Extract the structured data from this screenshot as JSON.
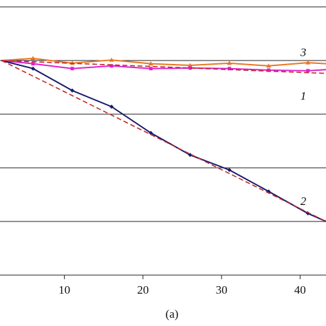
{
  "chart_data": {
    "type": "line",
    "xlabel": "(a)",
    "xlim": [
      1.8,
      43.3
    ],
    "xticks": [
      10,
      20,
      30,
      40
    ],
    "ylim": [
      -4,
      1
    ],
    "yticks": [
      -4,
      -3,
      -2,
      -1,
      0,
      1
    ],
    "grid": true,
    "series": [
      {
        "name": "3",
        "color": "#e87722",
        "marker": "triangle",
        "x": [
          2,
          6,
          11,
          16,
          21,
          26,
          31,
          36,
          41,
          43.3
        ],
        "values": [
          0,
          0.04,
          -0.05,
          0.01,
          -0.06,
          -0.09,
          -0.05,
          -0.1,
          -0.04,
          -0.06
        ]
      },
      {
        "name": "1",
        "color": "#e020d0",
        "marker": "square",
        "x": [
          2,
          6,
          11,
          16,
          21,
          26,
          31,
          36,
          41,
          43.3
        ],
        "values": [
          0,
          -0.06,
          -0.15,
          -0.1,
          -0.15,
          -0.14,
          -0.15,
          -0.18,
          -0.19,
          -0.17
        ]
      },
      {
        "name": "2",
        "color": "#1a1a6e",
        "marker": "diamond",
        "x": [
          2,
          6,
          11,
          16,
          21,
          26,
          31,
          36,
          41,
          43.3
        ],
        "values": [
          0,
          -0.15,
          -0.56,
          -0.86,
          -1.35,
          -1.76,
          -2.04,
          -2.44,
          -2.85,
          -3.0
        ]
      },
      {
        "color": "#c0282a",
        "dashed": true,
        "x": [
          2,
          43.3
        ],
        "values": [
          0,
          -0.24
        ]
      },
      {
        "color": "#c0282a",
        "dashed": true,
        "x": [
          2,
          43.3
        ],
        "values": [
          0,
          -3.0
        ]
      }
    ]
  }
}
